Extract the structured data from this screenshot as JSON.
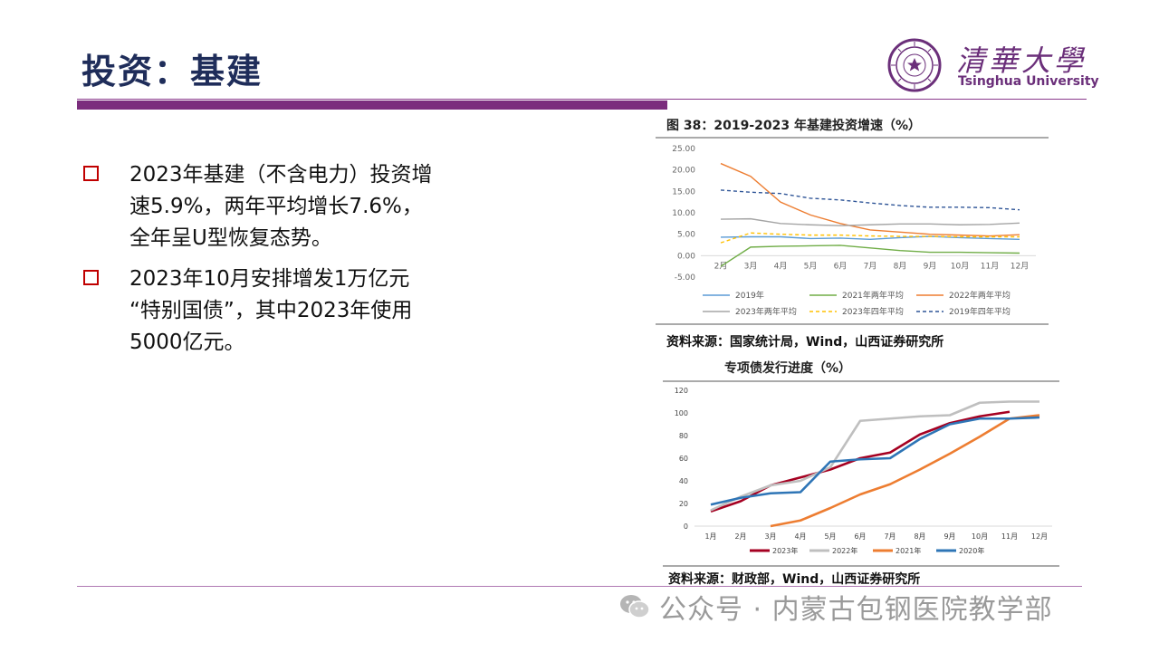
{
  "title": "投资：基建",
  "logo": {
    "cn": "清華大學",
    "en": "Tsinghua University",
    "seal_text": "清華大學 1911 UNIVERSITY"
  },
  "bullets": [
    "2023年基建（不含电力）投资增\n速5.9%，两年平均增长7.6%，\n全年呈U型恢复态势。",
    "2023年10月安排增发1万亿元\n“特别国债”，其中2023年使用\n5000亿元。"
  ],
  "chart1": {
    "caption": "图 38：2019-2023 年基建投资增速（%）",
    "source": "资料来源：国家统计局，Wind，山西证券研究所"
  },
  "chart2": {
    "caption": "专项债发行进度（%）",
    "source": "资料来源：财政部，Wind，山西证券研究所"
  },
  "watermark": "公众号 · 内蒙古包钢医院教学部",
  "chart_data": [
    {
      "type": "line",
      "title": "图 38：2019-2023 年基建投资增速（%）",
      "categories": [
        "2月",
        "3月",
        "4月",
        "5月",
        "6月",
        "7月",
        "8月",
        "9月",
        "10月",
        "11月",
        "12月"
      ],
      "ylim": [
        -5,
        25
      ],
      "yticks": [
        "-5.00",
        "0.00",
        "5.00",
        "10.00",
        "15.00",
        "20.00",
        "25.00"
      ],
      "legend_position": "bottom",
      "grid": false,
      "series": [
        {
          "name": "2019年",
          "color": "#5b9bd5",
          "dash": "",
          "values": [
            4.3,
            4.4,
            4.4,
            4.0,
            4.1,
            3.8,
            4.2,
            4.5,
            4.2,
            4.0,
            3.8
          ]
        },
        {
          "name": "2021年两年平均",
          "color": "#70ad47",
          "dash": "",
          "values": [
            -2.5,
            2.0,
            2.2,
            2.3,
            2.4,
            1.8,
            1.2,
            0.8,
            0.8,
            0.7,
            0.6
          ]
        },
        {
          "name": "2022年两年平均",
          "color": "#ed7d31",
          "dash": "",
          "values": [
            21.5,
            18.5,
            12.5,
            9.5,
            7.5,
            6.0,
            5.5,
            5.0,
            4.8,
            4.6,
            4.9
          ]
        },
        {
          "name": "2023年两年平均",
          "color": "#a5a5a5",
          "dash": "",
          "values": [
            8.5,
            8.6,
            7.5,
            7.2,
            7.0,
            7.2,
            7.4,
            7.4,
            7.2,
            7.3,
            7.6
          ]
        },
        {
          "name": "2023年四年平均",
          "color": "#ffc000",
          "dash": "4,3",
          "values": [
            3.0,
            5.3,
            5.0,
            4.8,
            4.8,
            4.6,
            4.5,
            4.5,
            4.4,
            4.4,
            4.4
          ]
        },
        {
          "name": "2019年四年平均",
          "color": "#2f5597",
          "dash": "4,3",
          "values": [
            15.3,
            14.8,
            14.5,
            13.4,
            13.0,
            12.3,
            11.7,
            11.3,
            11.3,
            11.2,
            10.7
          ]
        }
      ]
    },
    {
      "type": "line",
      "title": "专项债发行进度（%）",
      "categories": [
        "1月",
        "2月",
        "3月",
        "4月",
        "5月",
        "6月",
        "7月",
        "8月",
        "9月",
        "10月",
        "11月",
        "12月"
      ],
      "ylim": [
        0,
        120
      ],
      "yticks": [
        "0",
        "20",
        "40",
        "60",
        "80",
        "100",
        "120"
      ],
      "legend_position": "bottom",
      "grid": false,
      "series": [
        {
          "name": "2023年",
          "color": "#a50021",
          "values": [
            13,
            22,
            36,
            43,
            50,
            60,
            65,
            81,
            91,
            97,
            101,
            null
          ]
        },
        {
          "name": "2022年",
          "color": "#bfbfbf",
          "values": [
            14,
            26,
            36,
            40,
            52,
            93,
            95,
            97,
            98,
            109,
            110,
            110
          ]
        },
        {
          "name": "2021年",
          "color": "#ed7d31",
          "values": [
            null,
            null,
            0,
            5,
            16,
            28,
            37,
            50,
            64,
            79,
            95,
            98
          ]
        },
        {
          "name": "2020年",
          "color": "#2e75b6",
          "values": [
            19,
            25,
            29,
            30,
            57,
            59,
            60,
            77,
            90,
            95,
            95,
            96
          ]
        }
      ]
    }
  ]
}
